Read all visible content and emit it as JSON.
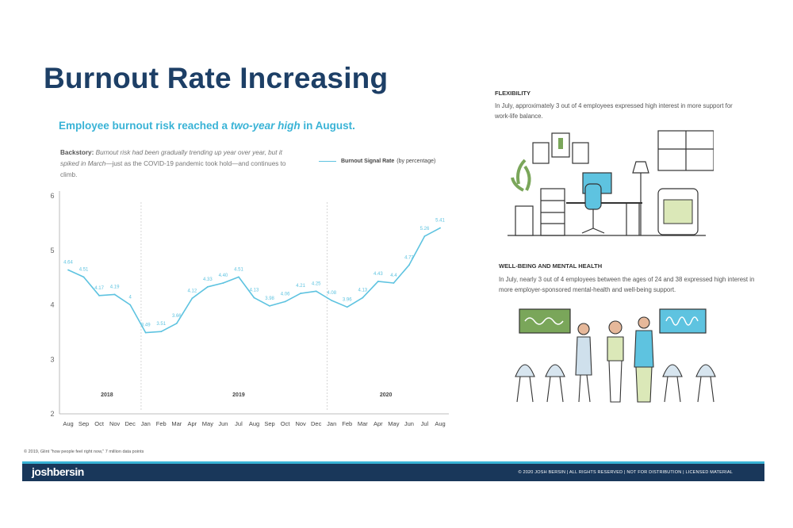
{
  "title": "Burnout Rate Increasing",
  "subtitle": {
    "pre": "Employee burnout risk reached a ",
    "em": "two-year high",
    "post": " in August."
  },
  "backstory": {
    "label": "Backstory:",
    "body": "Burnout risk had been gradually trending up year over year, but it spiked in March",
    "tail": "—just as the COVID-19 pandemic took hold—and continues to climb."
  },
  "legend": {
    "name": "Burnout Signal Rate",
    "unit": "(by percentage)"
  },
  "colors": {
    "title": "#1d3f66",
    "accent": "#39b3d6",
    "line": "#5ec3e0",
    "footer": "#19375a"
  },
  "chart_data": {
    "type": "line",
    "x": [
      "Aug",
      "Sep",
      "Oct",
      "Nov",
      "Dec",
      "Jan",
      "Feb",
      "Mar",
      "Apr",
      "May",
      "Jun",
      "Jul",
      "Aug",
      "Sep",
      "Oct",
      "Nov",
      "Dec",
      "Jan",
      "Feb",
      "Mar",
      "Apr",
      "May",
      "Jun",
      "Jul",
      "Aug"
    ],
    "series": [
      {
        "name": "Burnout Signal Rate",
        "values": [
          4.64,
          4.51,
          4.17,
          4.19,
          4,
          3.49,
          3.51,
          3.66,
          4.12,
          4.33,
          4.4,
          4.51,
          4.13,
          3.98,
          4.06,
          4.21,
          4.25,
          4.08,
          3.96,
          4.13,
          4.43,
          4.4,
          4.73,
          5.26,
          5.41
        ]
      }
    ],
    "data_labels": [
      "4.64",
      "4.51",
      "4.17",
      "4.19",
      "4",
      "3.49",
      "3.51",
      "3.66",
      "4.12",
      "4.33",
      "4.40",
      "4.51",
      "4.13",
      "3.98",
      "4.06",
      "4.21",
      "4.25",
      "4.08",
      "3.96",
      "4.13",
      "4.43",
      "4.4",
      "4.73",
      "5.26",
      "5.41"
    ],
    "year_labels": [
      {
        "label": "2018",
        "at": 2.5
      },
      {
        "label": "2019",
        "at": 11
      },
      {
        "label": "2020",
        "at": 20.5
      }
    ],
    "year_dividers": [
      5,
      17
    ],
    "ylim": [
      2,
      6
    ],
    "yticks": [
      2,
      3,
      4,
      5,
      6
    ],
    "grid": false,
    "legend_position": "top-right"
  },
  "flexibility": {
    "heading": "FLEXIBILITY",
    "text": "In July, approximately 3 out of 4 employees expressed high interest in more support for work-life balance."
  },
  "wellbeing": {
    "heading": "WELL-BEING AND MENTAL HEALTH",
    "text": "In July, nearly 3 out of 4 employees between the ages of 24 and 38 expressed high interest in more employer-sponsored mental-health and well-being support."
  },
  "footnote": "© 2019, Glint \"how people feel right now,\" 7 million data points",
  "footer": {
    "logo": "joshbersin",
    "copyright": "© 2020 JOSH BERSIN | ALL RIGHTS RESERVED | NOT FOR DISTRIBUTION | LICENSED MATERIAL"
  }
}
